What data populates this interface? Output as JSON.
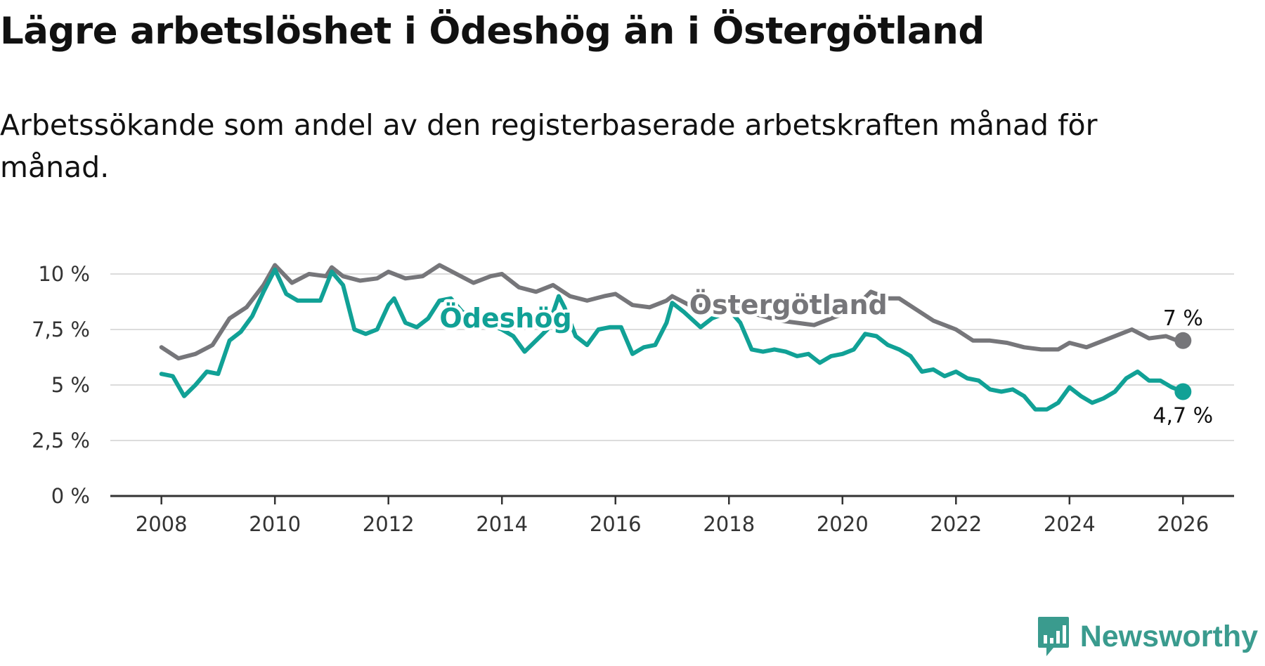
{
  "title": "Lägre arbetslöshet i Ödeshög än i Östergötland",
  "subtitle": "Arbetssökande som andel av den registerbaserade arbetskraften månad för månad.",
  "brand": {
    "name": "Newsworthy",
    "icon": "bar-chart-bubble-icon",
    "color": "#3a9b8e"
  },
  "chart_data": {
    "type": "line",
    "title": "Lägre arbetslöshet i Ödeshög än i Östergötland",
    "xlabel": "",
    "ylabel": "",
    "xlim": [
      2007.1,
      2026.9
    ],
    "ylim": [
      0,
      10
    ],
    "y_ticks": [
      0,
      2.5,
      5,
      7.5,
      10
    ],
    "y_tick_labels": [
      "0 %",
      "2,5 %",
      "5 %",
      "7,5 %",
      "10 %"
    ],
    "x_ticks": [
      2008,
      2010,
      2012,
      2014,
      2016,
      2018,
      2020,
      2022,
      2024,
      2026
    ],
    "x_tick_labels": [
      "2008",
      "2010",
      "2012",
      "2014",
      "2016",
      "2018",
      "2020",
      "2022",
      "2024",
      "2026"
    ],
    "grid": true,
    "series": [
      {
        "name": "Östergötland",
        "color": "#76767a",
        "end_label": "7 %",
        "points": [
          [
            2008.0,
            6.7
          ],
          [
            2008.3,
            6.2
          ],
          [
            2008.6,
            6.4
          ],
          [
            2008.9,
            6.8
          ],
          [
            2009.2,
            8.0
          ],
          [
            2009.5,
            8.5
          ],
          [
            2009.8,
            9.5
          ],
          [
            2010.0,
            10.4
          ],
          [
            2010.3,
            9.6
          ],
          [
            2010.6,
            10.0
          ],
          [
            2010.9,
            9.9
          ],
          [
            2011.0,
            10.3
          ],
          [
            2011.2,
            9.9
          ],
          [
            2011.5,
            9.7
          ],
          [
            2011.8,
            9.8
          ],
          [
            2012.0,
            10.1
          ],
          [
            2012.3,
            9.8
          ],
          [
            2012.6,
            9.9
          ],
          [
            2012.9,
            10.4
          ],
          [
            2013.2,
            10.0
          ],
          [
            2013.5,
            9.6
          ],
          [
            2013.8,
            9.9
          ],
          [
            2014.0,
            10.0
          ],
          [
            2014.3,
            9.4
          ],
          [
            2014.6,
            9.2
          ],
          [
            2014.9,
            9.5
          ],
          [
            2015.2,
            9.0
          ],
          [
            2015.5,
            8.8
          ],
          [
            2015.8,
            9.0
          ],
          [
            2016.0,
            9.1
          ],
          [
            2016.3,
            8.6
          ],
          [
            2016.6,
            8.5
          ],
          [
            2016.9,
            8.8
          ],
          [
            2017.0,
            9.0
          ],
          [
            2017.3,
            8.6
          ],
          [
            2017.6,
            8.6
          ],
          [
            2017.9,
            8.6
          ],
          [
            2018.0,
            8.6
          ],
          [
            2018.3,
            8.3
          ],
          [
            2018.6,
            8.1
          ],
          [
            2018.9,
            7.9
          ],
          [
            2019.2,
            7.8
          ],
          [
            2019.5,
            7.7
          ],
          [
            2019.8,
            8.0
          ],
          [
            2020.0,
            8.2
          ],
          [
            2020.3,
            8.7
          ],
          [
            2020.5,
            9.2
          ],
          [
            2020.8,
            8.9
          ],
          [
            2021.0,
            8.9
          ],
          [
            2021.3,
            8.4
          ],
          [
            2021.6,
            7.9
          ],
          [
            2021.9,
            7.6
          ],
          [
            2022.0,
            7.5
          ],
          [
            2022.3,
            7.0
          ],
          [
            2022.6,
            7.0
          ],
          [
            2022.9,
            6.9
          ],
          [
            2023.2,
            6.7
          ],
          [
            2023.5,
            6.6
          ],
          [
            2023.8,
            6.6
          ],
          [
            2024.0,
            6.9
          ],
          [
            2024.3,
            6.7
          ],
          [
            2024.6,
            7.0
          ],
          [
            2024.9,
            7.3
          ],
          [
            2025.1,
            7.5
          ],
          [
            2025.4,
            7.1
          ],
          [
            2025.7,
            7.2
          ],
          [
            2025.9,
            7.0
          ],
          [
            2026.0,
            7.0
          ]
        ]
      },
      {
        "name": "Ödeshög",
        "color": "#11a196",
        "end_label": "4,7 %",
        "points": [
          [
            2008.0,
            5.5
          ],
          [
            2008.2,
            5.4
          ],
          [
            2008.4,
            4.5
          ],
          [
            2008.6,
            5.0
          ],
          [
            2008.8,
            5.6
          ],
          [
            2009.0,
            5.5
          ],
          [
            2009.2,
            7.0
          ],
          [
            2009.4,
            7.4
          ],
          [
            2009.6,
            8.1
          ],
          [
            2009.8,
            9.2
          ],
          [
            2010.0,
            10.2
          ],
          [
            2010.2,
            9.1
          ],
          [
            2010.4,
            8.8
          ],
          [
            2010.6,
            8.8
          ],
          [
            2010.8,
            8.8
          ],
          [
            2011.0,
            10.1
          ],
          [
            2011.2,
            9.5
          ],
          [
            2011.4,
            7.5
          ],
          [
            2011.6,
            7.3
          ],
          [
            2011.8,
            7.5
          ],
          [
            2012.0,
            8.6
          ],
          [
            2012.1,
            8.9
          ],
          [
            2012.3,
            7.8
          ],
          [
            2012.5,
            7.6
          ],
          [
            2012.7,
            8.0
          ],
          [
            2012.9,
            8.8
          ],
          [
            2013.1,
            8.9
          ],
          [
            2013.3,
            8.3
          ],
          [
            2013.5,
            8.0
          ],
          [
            2013.7,
            8.0
          ],
          [
            2013.9,
            7.6
          ],
          [
            2014.0,
            7.5
          ],
          [
            2014.2,
            7.2
          ],
          [
            2014.4,
            6.5
          ],
          [
            2014.6,
            7.0
          ],
          [
            2014.8,
            7.5
          ],
          [
            2015.0,
            9.0
          ],
          [
            2015.1,
            8.5
          ],
          [
            2015.3,
            7.2
          ],
          [
            2015.5,
            6.8
          ],
          [
            2015.7,
            7.5
          ],
          [
            2015.9,
            7.6
          ],
          [
            2016.1,
            7.6
          ],
          [
            2016.3,
            6.4
          ],
          [
            2016.5,
            6.7
          ],
          [
            2016.7,
            6.8
          ],
          [
            2016.9,
            7.8
          ],
          [
            2017.0,
            8.7
          ],
          [
            2017.2,
            8.3
          ],
          [
            2017.5,
            7.6
          ],
          [
            2017.7,
            8.0
          ],
          [
            2017.9,
            8.2
          ],
          [
            2018.0,
            8.4
          ],
          [
            2018.2,
            7.8
          ],
          [
            2018.4,
            6.6
          ],
          [
            2018.6,
            6.5
          ],
          [
            2018.8,
            6.6
          ],
          [
            2019.0,
            6.5
          ],
          [
            2019.2,
            6.3
          ],
          [
            2019.4,
            6.4
          ],
          [
            2019.6,
            6.0
          ],
          [
            2019.8,
            6.3
          ],
          [
            2020.0,
            6.4
          ],
          [
            2020.2,
            6.6
          ],
          [
            2020.4,
            7.3
          ],
          [
            2020.6,
            7.2
          ],
          [
            2020.8,
            6.8
          ],
          [
            2021.0,
            6.6
          ],
          [
            2021.2,
            6.3
          ],
          [
            2021.4,
            5.6
          ],
          [
            2021.6,
            5.7
          ],
          [
            2021.8,
            5.4
          ],
          [
            2022.0,
            5.6
          ],
          [
            2022.2,
            5.3
          ],
          [
            2022.4,
            5.2
          ],
          [
            2022.6,
            4.8
          ],
          [
            2022.8,
            4.7
          ],
          [
            2023.0,
            4.8
          ],
          [
            2023.2,
            4.5
          ],
          [
            2023.4,
            3.9
          ],
          [
            2023.6,
            3.9
          ],
          [
            2023.8,
            4.2
          ],
          [
            2024.0,
            4.9
          ],
          [
            2024.2,
            4.5
          ],
          [
            2024.4,
            4.2
          ],
          [
            2024.6,
            4.4
          ],
          [
            2024.8,
            4.7
          ],
          [
            2025.0,
            5.3
          ],
          [
            2025.2,
            5.6
          ],
          [
            2025.4,
            5.2
          ],
          [
            2025.6,
            5.2
          ],
          [
            2025.8,
            4.9
          ],
          [
            2026.0,
            4.7
          ]
        ]
      }
    ]
  }
}
